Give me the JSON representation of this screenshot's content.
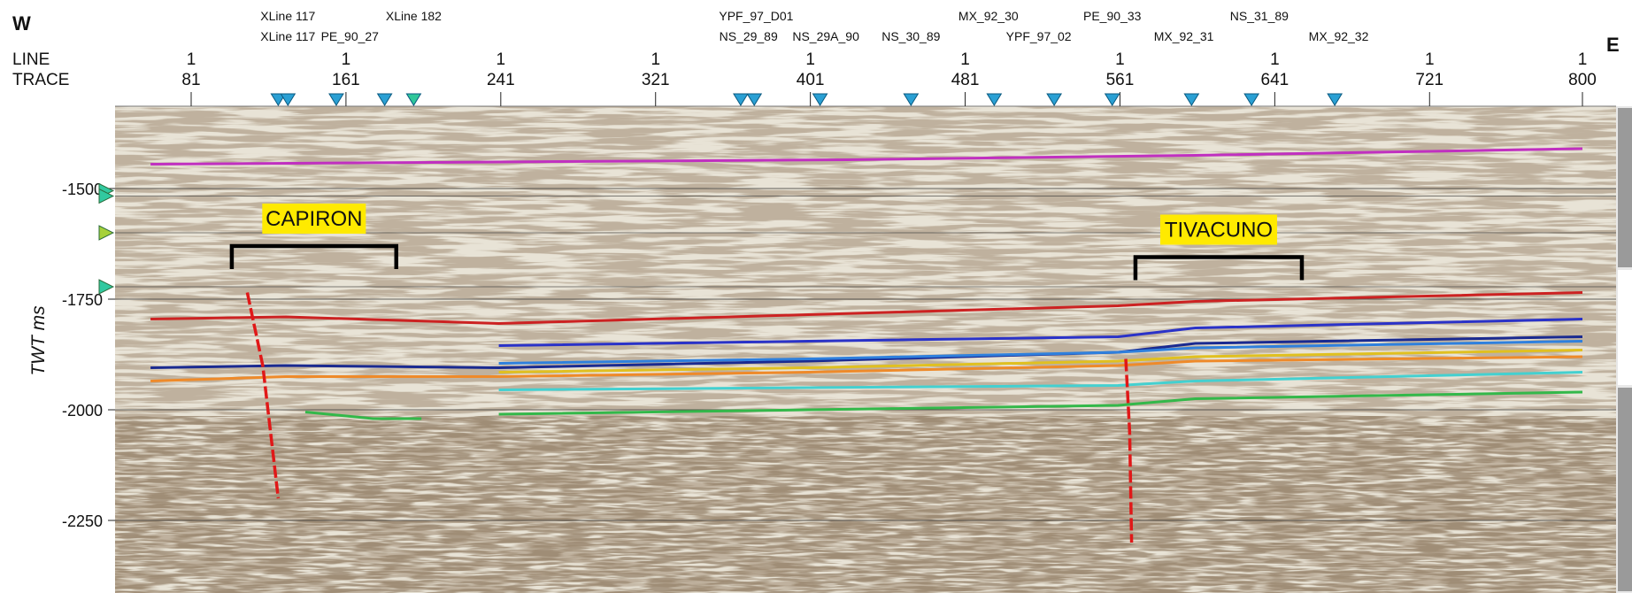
{
  "header": {
    "west_label": "W",
    "east_label": "E",
    "line_row_label": "LINE",
    "trace_row_label": "TRACE"
  },
  "trace_axis": [
    {
      "line": "1",
      "trace": "81"
    },
    {
      "line": "1",
      "trace": "161"
    },
    {
      "line": "1",
      "trace": "241"
    },
    {
      "line": "1",
      "trace": "321"
    },
    {
      "line": "1",
      "trace": "401"
    },
    {
      "line": "1",
      "trace": "481"
    },
    {
      "line": "1",
      "trace": "561"
    },
    {
      "line": "1",
      "trace": "641"
    },
    {
      "line": "1",
      "trace": "721"
    },
    {
      "line": "1",
      "trace": "800"
    }
  ],
  "intersections": [
    {
      "label": "XLine 117",
      "trace": 131,
      "row": 1
    },
    {
      "label": "XLine 117",
      "trace": 131,
      "row": 2
    },
    {
      "label": "XLine 182",
      "trace": 196,
      "row": 1
    },
    {
      "label": "PE_90_27",
      "trace": 163,
      "row": 2
    },
    {
      "label": "YPF_97_D01",
      "trace": 373,
      "row": 1
    },
    {
      "label": "NS_29_89",
      "trace": 369,
      "row": 2
    },
    {
      "label": "NS_29A_90",
      "trace": 409,
      "row": 2
    },
    {
      "label": "NS_30_89",
      "trace": 453,
      "row": 2
    },
    {
      "label": "MX_92_30",
      "trace": 493,
      "row": 1
    },
    {
      "label": "YPF_97_02",
      "trace": 519,
      "row": 2
    },
    {
      "label": "PE_90_33",
      "trace": 557,
      "row": 1
    },
    {
      "label": "MX_92_31",
      "trace": 594,
      "row": 2
    },
    {
      "label": "NS_31_89",
      "trace": 633,
      "row": 1
    },
    {
      "label": "MX_92_32",
      "trace": 674,
      "row": 2
    }
  ],
  "tie_markers": [
    {
      "trace": 126,
      "color": "#2aa0d4"
    },
    {
      "trace": 131,
      "color": "#2aa0d4"
    },
    {
      "trace": 156,
      "color": "#2aa0d4"
    },
    {
      "trace": 181,
      "color": "#2aa0d4"
    },
    {
      "trace": 196,
      "color": "#2fc79a"
    },
    {
      "trace": 365,
      "color": "#2aa0d4"
    },
    {
      "trace": 372,
      "color": "#2aa0d4"
    },
    {
      "trace": 406,
      "color": "#2aa0d4"
    },
    {
      "trace": 453,
      "color": "#2aa0d4"
    },
    {
      "trace": 496,
      "color": "#2aa0d4"
    },
    {
      "trace": 527,
      "color": "#2aa0d4"
    },
    {
      "trace": 557,
      "color": "#2aa0d4"
    },
    {
      "trace": 598,
      "color": "#2aa0d4"
    },
    {
      "trace": 629,
      "color": "#2aa0d4"
    },
    {
      "trace": 672,
      "color": "#2aa0d4"
    }
  ],
  "time_axis": {
    "label": "TWT ms",
    "ticks": [
      "-1500",
      "-1750",
      "-2000",
      "-2250"
    ],
    "tick_values": [
      -1500,
      -1750,
      -2000,
      -2250
    ],
    "range": [
      -1400,
      -2400
    ],
    "left_markers": [
      {
        "twt": -1505,
        "color": "#31c9a0"
      },
      {
        "twt": -1517,
        "color": "#31c9a0"
      },
      {
        "twt": -1600,
        "color": "#a6d13a"
      },
      {
        "twt": -1722,
        "color": "#31c9a0"
      }
    ]
  },
  "annotations": [
    {
      "label": "CAPIRON",
      "trace_from": 102,
      "trace_to": 187,
      "twt": -1630
    },
    {
      "label": "TIVACUNO",
      "trace_from": 569,
      "trace_to": 655,
      "twt": -1655
    }
  ],
  "horizons": [
    {
      "color": "#c030c0",
      "from": 60,
      "points": [
        [
          60,
          -1445
        ],
        [
          240,
          -1440
        ],
        [
          420,
          -1435
        ],
        [
          600,
          -1425
        ],
        [
          800,
          -1410
        ]
      ]
    },
    {
      "color": "#cc2222",
      "from": 60,
      "points": [
        [
          60,
          -1795
        ],
        [
          130,
          -1790
        ],
        [
          240,
          -1805
        ],
        [
          400,
          -1785
        ],
        [
          560,
          -1765
        ],
        [
          600,
          -1755
        ],
        [
          800,
          -1735
        ]
      ]
    },
    {
      "color": "#2a32c8",
      "from": 240,
      "points": [
        [
          240,
          -1855
        ],
        [
          400,
          -1845
        ],
        [
          560,
          -1835
        ],
        [
          600,
          -1815
        ],
        [
          800,
          -1795
        ]
      ]
    },
    {
      "color": "#1a2a90",
      "from": 60,
      "points": [
        [
          60,
          -1905
        ],
        [
          130,
          -1900
        ],
        [
          240,
          -1905
        ],
        [
          400,
          -1890
        ],
        [
          560,
          -1870
        ],
        [
          600,
          -1850
        ],
        [
          800,
          -1835
        ]
      ]
    },
    {
      "color": "#2f80dd",
      "from": 240,
      "points": [
        [
          240,
          -1895
        ],
        [
          400,
          -1885
        ],
        [
          560,
          -1870
        ],
        [
          600,
          -1860
        ],
        [
          800,
          -1845
        ]
      ]
    },
    {
      "color": "#e0c020",
      "from": 240,
      "points": [
        [
          240,
          -1915
        ],
        [
          400,
          -1905
        ],
        [
          560,
          -1890
        ],
        [
          600,
          -1880
        ],
        [
          800,
          -1865
        ]
      ]
    },
    {
      "color": "#ee8a2a",
      "from": 60,
      "points": [
        [
          60,
          -1935
        ],
        [
          130,
          -1925
        ],
        [
          240,
          -1925
        ],
        [
          400,
          -1915
        ],
        [
          560,
          -1900
        ],
        [
          600,
          -1890
        ],
        [
          800,
          -1880
        ]
      ]
    },
    {
      "color": "#44d0d0",
      "from": 240,
      "points": [
        [
          240,
          -1955
        ],
        [
          400,
          -1950
        ],
        [
          560,
          -1945
        ],
        [
          600,
          -1935
        ],
        [
          800,
          -1915
        ]
      ]
    },
    {
      "color": "#33b84a",
      "from": 240,
      "points": [
        [
          240,
          -2010
        ],
        [
          400,
          -2000
        ],
        [
          560,
          -1990
        ],
        [
          600,
          -1975
        ],
        [
          800,
          -1960
        ]
      ]
    },
    {
      "color": "#33b84a",
      "from": 130,
      "points": [
        [
          140,
          -2005
        ],
        [
          175,
          -2020
        ],
        [
          200,
          -2020
        ]
      ]
    }
  ],
  "faults": [
    {
      "color": "#e01818",
      "points": [
        [
          110,
          -1735
        ],
        [
          118,
          -1900
        ],
        [
          126,
          -2200
        ]
      ]
    },
    {
      "color": "#e01818",
      "points": [
        [
          564,
          -1885
        ],
        [
          566,
          -2050
        ],
        [
          567,
          -2300
        ]
      ]
    }
  ],
  "colors": {
    "seismic_light": "#e6e1d4",
    "seismic_dark": "#7a5a3a",
    "annotation_fill": "#ffea00",
    "bracket": "#000000",
    "gridline": "#333333"
  }
}
